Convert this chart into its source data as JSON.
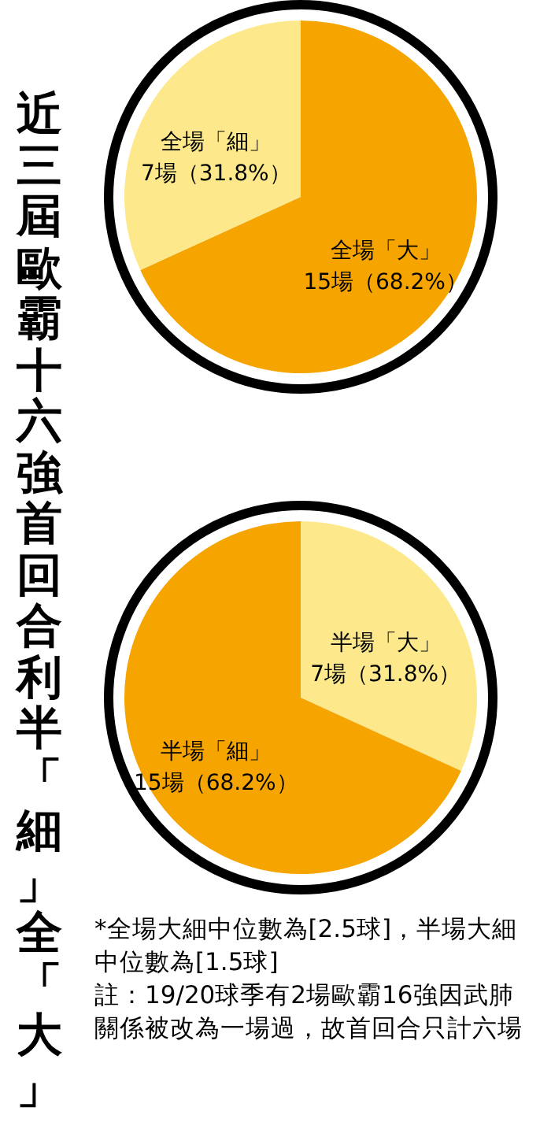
{
  "chart_data": [
    {
      "type": "pie",
      "title": "近三屆歐霸十六強首回合利半「細」全「大」",
      "categories": [
        "全場「大」",
        "全場「細」"
      ],
      "values": [
        15,
        7
      ],
      "colors": [
        "#f5a400",
        "#fde98c"
      ],
      "value_labels": [
        "15場（68.2%）",
        "7場（31.8%）"
      ]
    },
    {
      "type": "pie",
      "categories": [
        "半場「大」",
        "半場「細」"
      ],
      "values": [
        7,
        15
      ],
      "colors": [
        "#fde98c",
        "#f5a400"
      ],
      "value_labels": [
        "7場（31.8%）",
        "15場（68.2%）"
      ],
      "annotations": [
        "*全場大細中位數為[2.5球]，半場大細中位數為[1.5球]",
        "註：19/20球季有2場歐霸16強因武肺關係被改為一場過，故首回合只計六場"
      ]
    }
  ]
}
